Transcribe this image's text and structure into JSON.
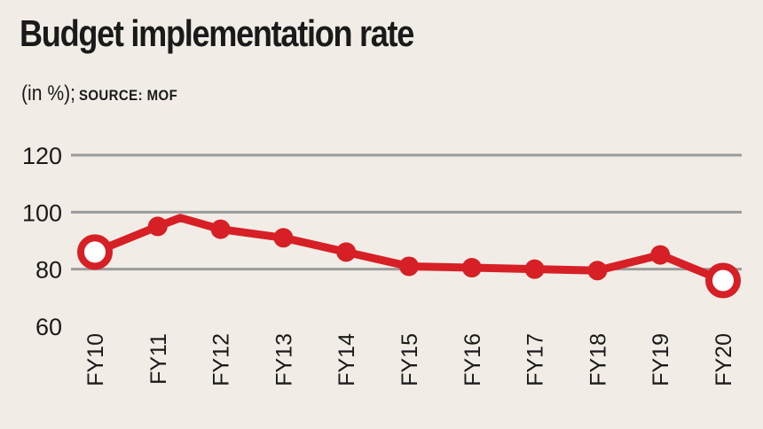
{
  "title": "Budget implementation rate",
  "subtitle_unit": "(in %);",
  "subtitle_source": "SOURCE: MOF",
  "colors": {
    "background": "#f1ede6",
    "line": "#d71f26",
    "grid": "#9b9b9b",
    "text": "#1a1a1a",
    "highlight_fill": "#ffffff"
  },
  "chart_data": {
    "type": "line",
    "title": "Budget implementation rate",
    "subtitle": "(in %); SOURCE: MOF",
    "xlabel": "",
    "ylabel": "",
    "categories": [
      "FY10",
      "FY11",
      "FY12",
      "FY13",
      "FY14",
      "FY15",
      "FY16",
      "FY17",
      "FY18",
      "FY19",
      "FY20"
    ],
    "series": [
      {
        "values": [
          86,
          95,
          94,
          91,
          86,
          81,
          80.5,
          80,
          79.5,
          85,
          76
        ]
      }
    ],
    "highlighted_points": [
      "FY10",
      "FY20"
    ],
    "peak_between": {
      "after": "FY11",
      "value": 98
    },
    "ylim": [
      60,
      120
    ],
    "yticks": [
      60,
      80,
      100,
      120
    ],
    "grid": true,
    "legend": "none"
  }
}
